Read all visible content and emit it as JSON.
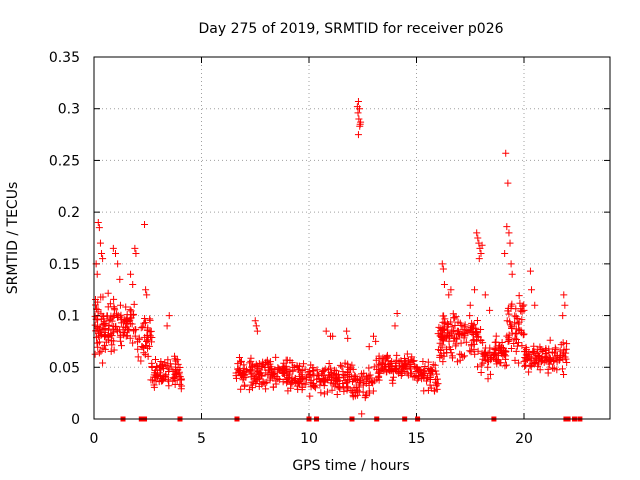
{
  "chart_data": {
    "type": "scatter",
    "title": "Day 275 of 2019, SRMTID for receiver p026",
    "xlabel": "GPS time / hours",
    "ylabel": "SRMTID / TECUs",
    "xlim": [
      0,
      24
    ],
    "ylim": [
      0,
      0.35
    ],
    "xticks": [
      0,
      5,
      10,
      15,
      20
    ],
    "yticks": [
      0,
      0.05,
      0.1,
      0.15,
      0.2,
      0.25,
      0.3,
      0.35
    ],
    "xtick_labels": [
      "0",
      "5",
      "10",
      "15",
      "20"
    ],
    "ytick_labels": [
      "0",
      "0.05",
      "0.1",
      "0.15",
      "0.2",
      "0.25",
      "0.3",
      "0.35"
    ],
    "grid": true,
    "marker": "+",
    "color": "#ff0000",
    "series": [
      {
        "name": "SRMTID",
        "clusters": [
          {
            "x_range": [
              0.0,
              1.0
            ],
            "y_mean": 0.09,
            "y_spread": 0.045,
            "n": 90
          },
          {
            "x_range": [
              1.0,
              2.0
            ],
            "y_mean": 0.09,
            "y_spread": 0.035,
            "n": 55
          },
          {
            "x_range": [
              2.0,
              2.7
            ],
            "y_mean": 0.07,
            "y_spread": 0.04,
            "n": 40
          },
          {
            "x_range": [
              2.7,
              4.1
            ],
            "y_mean": 0.045,
            "y_spread": 0.02,
            "n": 80
          },
          {
            "x_range": [
              6.6,
              9.0
            ],
            "y_mean": 0.045,
            "y_spread": 0.02,
            "n": 150
          },
          {
            "x_range": [
              9.0,
              12.0
            ],
            "y_mean": 0.04,
            "y_spread": 0.02,
            "n": 170
          },
          {
            "x_range": [
              12.0,
              13.0
            ],
            "y_mean": 0.035,
            "y_spread": 0.02,
            "n": 50
          },
          {
            "x_range": [
              13.0,
              15.0
            ],
            "y_mean": 0.05,
            "y_spread": 0.02,
            "n": 110
          },
          {
            "x_range": [
              15.0,
              16.0
            ],
            "y_mean": 0.04,
            "y_spread": 0.02,
            "n": 55
          },
          {
            "x_range": [
              16.0,
              18.0
            ],
            "y_mean": 0.08,
            "y_spread": 0.035,
            "n": 140
          },
          {
            "x_range": [
              18.0,
              19.2
            ],
            "y_mean": 0.06,
            "y_spread": 0.025,
            "n": 70
          },
          {
            "x_range": [
              19.2,
              20.0
            ],
            "y_mean": 0.09,
            "y_spread": 0.04,
            "n": 55
          },
          {
            "x_range": [
              20.0,
              22.0
            ],
            "y_mean": 0.06,
            "y_spread": 0.02,
            "n": 110
          }
        ],
        "points": [
          [
            0.2,
            0.19
          ],
          [
            0.25,
            0.185
          ],
          [
            0.3,
            0.17
          ],
          [
            0.35,
            0.16
          ],
          [
            0.1,
            0.15
          ],
          [
            0.15,
            0.14
          ],
          [
            0.4,
            0.155
          ],
          [
            1.0,
            0.16
          ],
          [
            0.9,
            0.165
          ],
          [
            1.2,
            0.135
          ],
          [
            1.1,
            0.15
          ],
          [
            1.9,
            0.165
          ],
          [
            1.95,
            0.16
          ],
          [
            1.7,
            0.14
          ],
          [
            1.8,
            0.13
          ],
          [
            2.35,
            0.188
          ],
          [
            2.4,
            0.125
          ],
          [
            2.45,
            0.12
          ],
          [
            3.5,
            0.1
          ],
          [
            3.4,
            0.09
          ],
          [
            7.5,
            0.095
          ],
          [
            7.55,
            0.09
          ],
          [
            7.6,
            0.085
          ],
          [
            10.8,
            0.085
          ],
          [
            11.0,
            0.08
          ],
          [
            11.1,
            0.08
          ],
          [
            11.75,
            0.085
          ],
          [
            11.8,
            0.078
          ],
          [
            12.3,
            0.307
          ],
          [
            12.35,
            0.3
          ],
          [
            12.25,
            0.302
          ],
          [
            12.28,
            0.296
          ],
          [
            12.32,
            0.29
          ],
          [
            12.38,
            0.285
          ],
          [
            12.4,
            0.287
          ],
          [
            12.3,
            0.275
          ],
          [
            12.36,
            0.283
          ],
          [
            12.45,
            0.005
          ],
          [
            12.8,
            0.07
          ],
          [
            13.0,
            0.08
          ],
          [
            13.1,
            0.075
          ],
          [
            14.1,
            0.102
          ],
          [
            14.0,
            0.09
          ],
          [
            16.2,
            0.15
          ],
          [
            16.25,
            0.145
          ],
          [
            16.3,
            0.13
          ],
          [
            16.5,
            0.12
          ],
          [
            16.6,
            0.125
          ],
          [
            17.5,
            0.11
          ],
          [
            17.7,
            0.125
          ],
          [
            17.8,
            0.18
          ],
          [
            17.85,
            0.175
          ],
          [
            17.9,
            0.17
          ],
          [
            17.95,
            0.165
          ],
          [
            18.0,
            0.16
          ],
          [
            18.05,
            0.168
          ],
          [
            17.92,
            0.155
          ],
          [
            18.2,
            0.12
          ],
          [
            18.4,
            0.105
          ],
          [
            19.15,
            0.257
          ],
          [
            19.25,
            0.228
          ],
          [
            19.2,
            0.186
          ],
          [
            19.3,
            0.18
          ],
          [
            19.35,
            0.17
          ],
          [
            19.1,
            0.16
          ],
          [
            19.4,
            0.15
          ],
          [
            19.45,
            0.14
          ],
          [
            20.3,
            0.143
          ],
          [
            20.35,
            0.125
          ],
          [
            20.5,
            0.11
          ],
          [
            21.85,
            0.12
          ],
          [
            21.9,
            0.11
          ],
          [
            21.8,
            0.1
          ]
        ],
        "zero_markers_x": [
          1.35,
          2.2,
          2.35,
          4.0,
          6.65,
          10.0,
          10.35,
          12.0,
          13.15,
          14.45,
          15.05,
          18.6,
          21.95,
          22.05,
          22.35,
          22.6
        ]
      }
    ]
  }
}
